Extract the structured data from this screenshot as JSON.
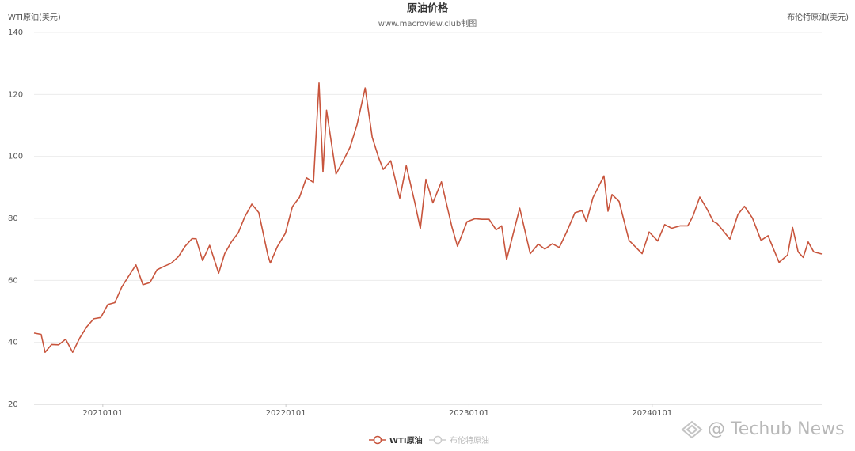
{
  "chart_data": {
    "type": "line",
    "title": "原油价格",
    "subtitle": "www.macroview.club制图",
    "y_label": "WTI原油(美元)",
    "y2_label": "布伦特原油(美元)",
    "watermark": "@ Techub News",
    "ylim": [
      20,
      140
    ],
    "yticks": [
      20,
      40,
      60,
      80,
      100,
      120,
      140
    ],
    "grid": true,
    "xlim": [
      "20200817",
      "20241204"
    ],
    "xticks": [
      "20210101",
      "20220101",
      "20230101",
      "20240101"
    ],
    "x": [
      "20200817",
      "20200831",
      "20200908",
      "20200921",
      "20201005",
      "20201019",
      "20201102",
      "20201116",
      "20201130",
      "20201214",
      "20201228",
      "20210111",
      "20210125",
      "20210208",
      "20210222",
      "20210308",
      "20210322",
      "20210405",
      "20210419",
      "20210503",
      "20210517",
      "20210601",
      "20210614",
      "20210628",
      "20210706",
      "20210719",
      "20210802",
      "20210820",
      "20210901",
      "20210915",
      "20210928",
      "20211011",
      "20211025",
      "20211108",
      "20211126",
      "20211201",
      "20211215",
      "20211231",
      "20220114",
      "20220128",
      "20220211",
      "20220225",
      "20220308",
      "20220316",
      "20220323",
      "20220411",
      "20220425",
      "20220509",
      "20220523",
      "20220608",
      "20220622",
      "20220705",
      "20220714",
      "20220729",
      "20220816",
      "20220829",
      "20220915",
      "20220926",
      "20221007",
      "20221021",
      "20221107",
      "20221128",
      "20221209",
      "20221228",
      "20230113",
      "20230127",
      "20230210",
      "20230224",
      "20230307",
      "20230317",
      "20230331",
      "20230412",
      "20230503",
      "20230519",
      "20230601",
      "20230616",
      "20230630",
      "20230714",
      "20230731",
      "20230814",
      "20230823",
      "20230905",
      "20230927",
      "20231005",
      "20231013",
      "20231027",
      "20231116",
      "20231212",
      "20231226",
      "20240112",
      "20240126",
      "20240209",
      "20240226",
      "20240312",
      "20240322",
      "20240405",
      "20240419",
      "20240502",
      "20240510",
      "20240604",
      "20240620",
      "20240703",
      "20240719",
      "20240805",
      "20240819",
      "20240910",
      "20240927",
      "20241007",
      "20241018",
      "20241028",
      "20241107",
      "20241118",
      "20241204"
    ],
    "series": [
      {
        "name": "WTI原油",
        "color": "#c8553d",
        "values": [
          43,
          42.6,
          36.8,
          39.3,
          39.2,
          41,
          36.8,
          41.4,
          45,
          47.6,
          48,
          52.2,
          52.8,
          57.9,
          61.5,
          65,
          58.6,
          59.3,
          63.4,
          64.5,
          65.5,
          67.7,
          71,
          73.5,
          73.4,
          66.4,
          71.3,
          62.3,
          68.6,
          72.6,
          75.3,
          80.5,
          84.6,
          81.9,
          68.2,
          65.6,
          70.9,
          75.2,
          83.8,
          86.8,
          93.1,
          91.6,
          123.7,
          95,
          114.9,
          94.3,
          98.5,
          103,
          110.3,
          122.1,
          106.2,
          99.5,
          95.8,
          98.6,
          86.5,
          97,
          85.1,
          76.7,
          92.6,
          85,
          91.8,
          77.2,
          71,
          78.9,
          79.9,
          79.7,
          79.7,
          76.3,
          77.6,
          66.7,
          75.7,
          83.3,
          68.6,
          71.7,
          70.1,
          71.8,
          70.6,
          75.4,
          81.8,
          82.5,
          78.9,
          86.7,
          93.7,
          82.3,
          87.7,
          85.5,
          72.9,
          68.6,
          75.6,
          72.7,
          78,
          76.8,
          77.6,
          77.6,
          80.6,
          86.9,
          83.1,
          79,
          78.3,
          73.3,
          81.3,
          83.9,
          80.1,
          72.9,
          74.4,
          65.8,
          68.2,
          77.1,
          69.2,
          67.4,
          72.4,
          69.2,
          68.5
        ]
      },
      {
        "name": "布伦特原油",
        "color": "#cccccc",
        "visible": false
      }
    ]
  }
}
